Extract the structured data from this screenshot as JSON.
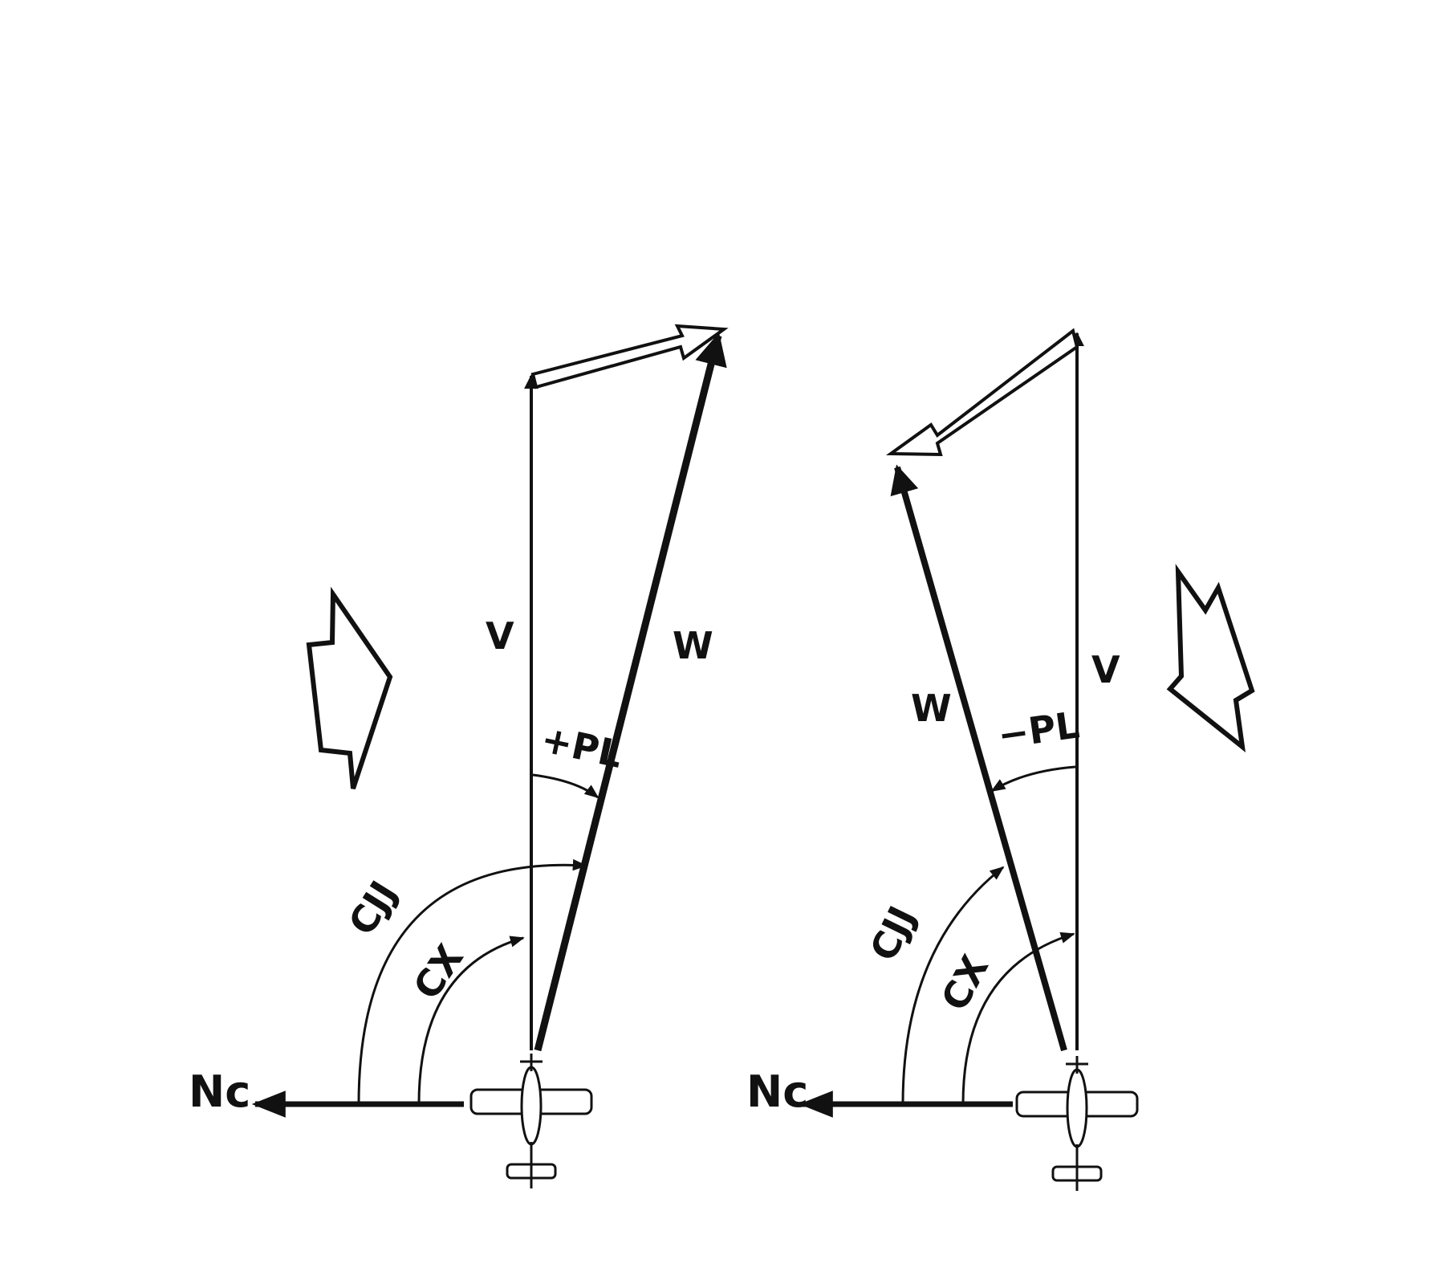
{
  "colors": {
    "ink": "#111111",
    "background": "#ffffff"
  },
  "left_diagram": {
    "label_v": "V",
    "label_w": "W",
    "label_pl": "+PL",
    "label_cjj": "CJJ",
    "label_cx": "CX",
    "label_nc": "Nc",
    "icons": [
      "airplane-icon",
      "wind-arrow-icon"
    ]
  },
  "right_diagram": {
    "label_v": "V",
    "label_w": "W",
    "label_pl": "−PL",
    "label_cjj": "CJJ",
    "label_cx": "CX",
    "label_nc": "Nc",
    "icons": [
      "airplane-icon",
      "wind-arrow-icon"
    ]
  }
}
